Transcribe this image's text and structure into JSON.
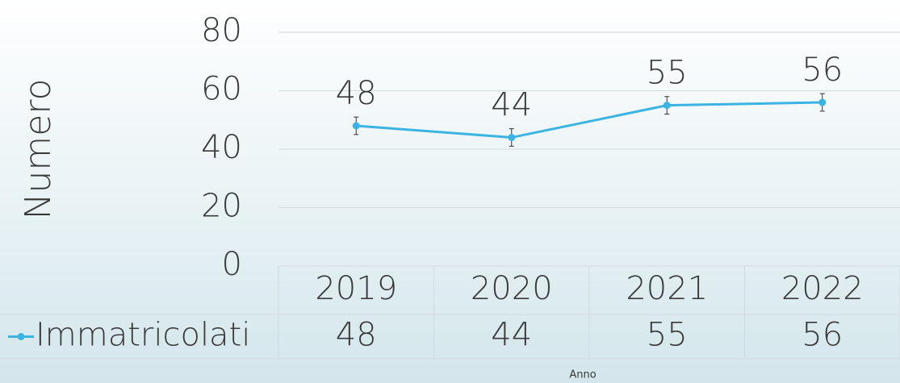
{
  "chart_data": {
    "type": "line",
    "x_label": "Anno",
    "y_label": "Numero",
    "categories": [
      "2019",
      "2020",
      "2021",
      "2022"
    ],
    "series": [
      {
        "name": "Immatricolati",
        "color": "#3bb3e3",
        "values": [
          48,
          44,
          55,
          56
        ],
        "errors": [
          3,
          3,
          3,
          3
        ]
      }
    ],
    "ylim": [
      0,
      80
    ],
    "yticks": [
      0,
      20,
      40,
      60,
      80
    ],
    "grid": true,
    "data_table": true
  }
}
